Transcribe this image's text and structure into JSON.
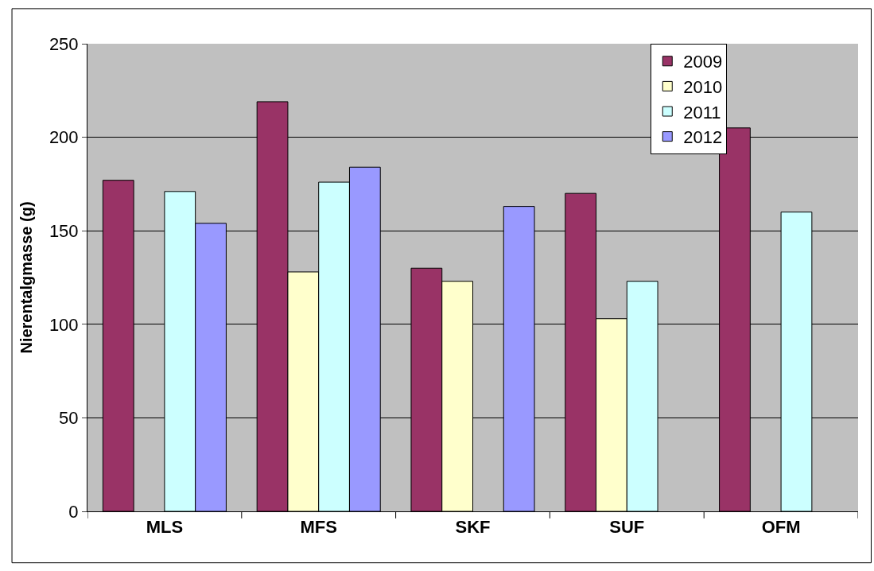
{
  "chart_data": {
    "type": "bar",
    "ylabel": "Nierentalgmasse (g)",
    "categories": [
      "MLS",
      "MFS",
      "SKF",
      "SUF",
      "OFM"
    ],
    "series": [
      {
        "name": "2009",
        "color": "#993366",
        "values": [
          177,
          219,
          130,
          170,
          205
        ]
      },
      {
        "name": "2010",
        "color": "#ffffcc",
        "values": [
          null,
          128,
          123,
          103,
          null
        ]
      },
      {
        "name": "2011",
        "color": "#ccffff",
        "values": [
          171,
          176,
          null,
          123,
          160
        ]
      },
      {
        "name": "2012",
        "color": "#9999ff",
        "values": [
          154,
          184,
          163,
          null,
          null
        ]
      }
    ],
    "ylim": [
      0,
      250
    ],
    "yticks": [
      0,
      50,
      100,
      150,
      200,
      250
    ],
    "grid": "y",
    "legend": "top right"
  }
}
